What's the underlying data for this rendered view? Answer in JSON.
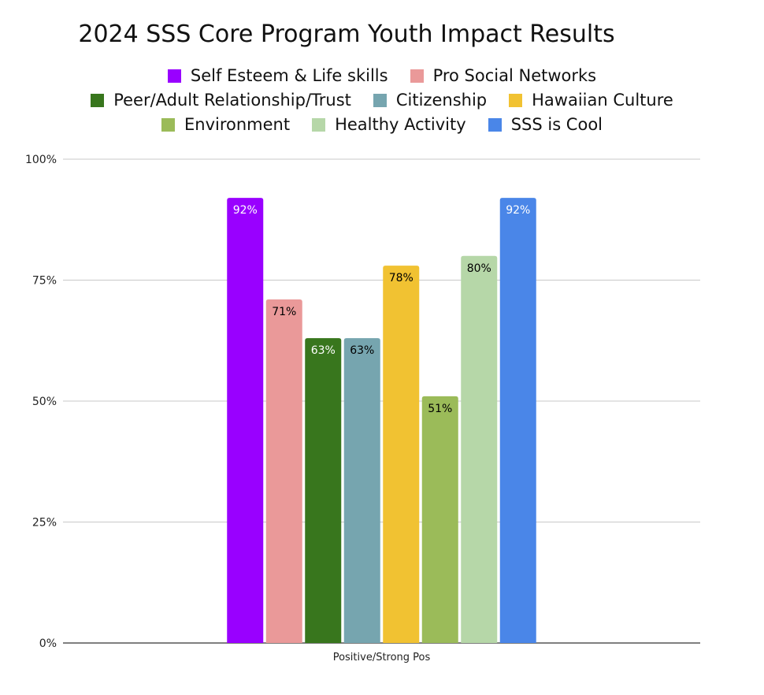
{
  "chart_data": {
    "type": "bar",
    "title": "2024 SSS Core Program Youth Impact Results",
    "categories": [
      "Positive/Strong Pos"
    ],
    "ylim": [
      0,
      100
    ],
    "yticks": [
      "0%",
      "25%",
      "50%",
      "75%",
      "100%"
    ],
    "ytick_values": [
      0,
      25,
      50,
      75,
      100
    ],
    "grid": true,
    "legend_position": "top",
    "series": [
      {
        "name": "Self Esteem & Life skills",
        "values": [
          92
        ],
        "label": "92%",
        "color": "#9900ff",
        "label_color": "#ffffff"
      },
      {
        "name": "Pro Social Networks",
        "values": [
          71
        ],
        "label": "71%",
        "color": "#ea9999",
        "label_color": "#000000"
      },
      {
        "name": "Peer/Adult Relationship/Trust",
        "values": [
          63
        ],
        "label": "63%",
        "color": "#38761d",
        "label_color": "#ffffff"
      },
      {
        "name": "Citizenship",
        "values": [
          63
        ],
        "label": "63%",
        "color": "#76a5af",
        "label_color": "#000000"
      },
      {
        "name": "Hawaiian Culture",
        "values": [
          78
        ],
        "label": "78%",
        "color": "#f1c232",
        "label_color": "#000000"
      },
      {
        "name": "Environment",
        "values": [
          51
        ],
        "label": "51%",
        "color": "#9bbb59",
        "label_color": "#000000"
      },
      {
        "name": "Healthy Activity",
        "values": [
          80
        ],
        "label": "80%",
        "color": "#b6d7a8",
        "label_color": "#000000"
      },
      {
        "name": "SSS is Cool",
        "values": [
          92
        ],
        "label": "92%",
        "color": "#4a86e8",
        "label_color": "#ffffff"
      }
    ]
  }
}
